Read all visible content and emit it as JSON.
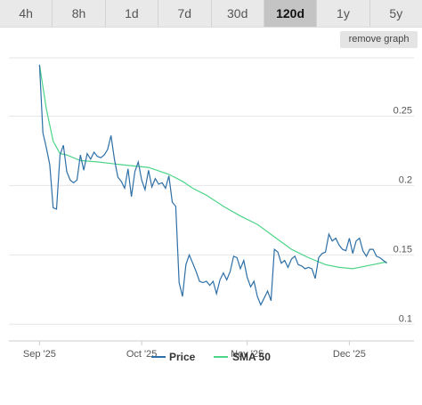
{
  "tabs": [
    {
      "label": "4h",
      "active": false
    },
    {
      "label": "8h",
      "active": false
    },
    {
      "label": "1d",
      "active": false
    },
    {
      "label": "7d",
      "active": false
    },
    {
      "label": "30d",
      "active": false
    },
    {
      "label": "120d",
      "active": true
    },
    {
      "label": "1y",
      "active": false
    },
    {
      "label": "5y",
      "active": false
    }
  ],
  "remove_graph_label": "remove graph",
  "colors": {
    "price": "#2d6fa6",
    "sma": "#4cd488",
    "grid": "#e6e6e6",
    "axis": "#cccccc"
  },
  "chart_data": {
    "type": "line",
    "xlim": [
      "2025-08-23",
      "2025-12-20"
    ],
    "ylim": [
      0.088,
      0.292
    ],
    "x_ticks": [
      {
        "date": "2025-09-01",
        "label": "Sep '25"
      },
      {
        "date": "2025-10-01",
        "label": "Oct '25"
      },
      {
        "date": "2025-11-01",
        "label": "Nov '25"
      },
      {
        "date": "2025-12-01",
        "label": "Dec '25"
      }
    ],
    "y_ticks": [
      {
        "value": 0.25,
        "label": "0.25"
      },
      {
        "value": 0.2,
        "label": "0.2"
      },
      {
        "value": 0.15,
        "label": "0.15"
      },
      {
        "value": 0.1,
        "label": "0.1"
      }
    ],
    "series": [
      {
        "name": "Price",
        "points": [
          [
            "2025-09-01",
            0.287
          ],
          [
            "2025-09-02",
            0.238
          ],
          [
            "2025-09-03",
            0.227
          ],
          [
            "2025-09-04",
            0.215
          ],
          [
            "2025-09-05",
            0.184
          ],
          [
            "2025-09-06",
            0.183
          ],
          [
            "2025-09-07",
            0.222
          ],
          [
            "2025-09-08",
            0.229
          ],
          [
            "2025-09-09",
            0.21
          ],
          [
            "2025-09-10",
            0.204
          ],
          [
            "2025-09-11",
            0.202
          ],
          [
            "2025-09-12",
            0.204
          ],
          [
            "2025-09-13",
            0.222
          ],
          [
            "2025-09-14",
            0.211
          ],
          [
            "2025-09-15",
            0.223
          ],
          [
            "2025-09-16",
            0.219
          ],
          [
            "2025-09-17",
            0.224
          ],
          [
            "2025-09-18",
            0.221
          ],
          [
            "2025-09-19",
            0.22
          ],
          [
            "2025-09-20",
            0.222
          ],
          [
            "2025-09-21",
            0.226
          ],
          [
            "2025-09-22",
            0.236
          ],
          [
            "2025-09-23",
            0.219
          ],
          [
            "2025-09-24",
            0.206
          ],
          [
            "2025-09-25",
            0.203
          ],
          [
            "2025-09-26",
            0.198
          ],
          [
            "2025-09-27",
            0.212
          ],
          [
            "2025-09-28",
            0.192
          ],
          [
            "2025-09-29",
            0.21
          ],
          [
            "2025-09-30",
            0.217
          ],
          [
            "2025-10-01",
            0.204
          ],
          [
            "2025-10-02",
            0.197
          ],
          [
            "2025-10-03",
            0.211
          ],
          [
            "2025-10-04",
            0.199
          ],
          [
            "2025-10-05",
            0.205
          ],
          [
            "2025-10-06",
            0.201
          ],
          [
            "2025-10-07",
            0.202
          ],
          [
            "2025-10-08",
            0.198
          ],
          [
            "2025-10-09",
            0.207
          ],
          [
            "2025-10-10",
            0.188
          ],
          [
            "2025-10-11",
            0.185
          ],
          [
            "2025-10-12",
            0.13
          ],
          [
            "2025-10-13",
            0.12
          ],
          [
            "2025-10-14",
            0.143
          ],
          [
            "2025-10-15",
            0.15
          ],
          [
            "2025-10-16",
            0.144
          ],
          [
            "2025-10-17",
            0.138
          ],
          [
            "2025-10-18",
            0.131
          ],
          [
            "2025-10-19",
            0.13
          ],
          [
            "2025-10-20",
            0.131
          ],
          [
            "2025-10-21",
            0.128
          ],
          [
            "2025-10-22",
            0.131
          ],
          [
            "2025-10-23",
            0.122
          ],
          [
            "2025-10-24",
            0.132
          ],
          [
            "2025-10-25",
            0.137
          ],
          [
            "2025-10-26",
            0.132
          ],
          [
            "2025-10-27",
            0.138
          ],
          [
            "2025-10-28",
            0.149
          ],
          [
            "2025-10-29",
            0.148
          ],
          [
            "2025-10-30",
            0.14
          ],
          [
            "2025-10-31",
            0.146
          ],
          [
            "2025-11-01",
            0.134
          ],
          [
            "2025-11-02",
            0.127
          ],
          [
            "2025-11-03",
            0.131
          ],
          [
            "2025-11-04",
            0.12
          ],
          [
            "2025-11-05",
            0.114
          ],
          [
            "2025-11-06",
            0.119
          ],
          [
            "2025-11-07",
            0.124
          ],
          [
            "2025-11-08",
            0.117
          ],
          [
            "2025-11-09",
            0.154
          ],
          [
            "2025-11-10",
            0.152
          ],
          [
            "2025-11-11",
            0.144
          ],
          [
            "2025-11-12",
            0.146
          ],
          [
            "2025-11-13",
            0.141
          ],
          [
            "2025-11-14",
            0.147
          ],
          [
            "2025-11-15",
            0.149
          ],
          [
            "2025-11-16",
            0.143
          ],
          [
            "2025-11-17",
            0.142
          ],
          [
            "2025-11-18",
            0.14
          ],
          [
            "2025-11-19",
            0.141
          ],
          [
            "2025-11-20",
            0.14
          ],
          [
            "2025-11-21",
            0.133
          ],
          [
            "2025-11-22",
            0.148
          ],
          [
            "2025-11-23",
            0.151
          ],
          [
            "2025-11-24",
            0.152
          ],
          [
            "2025-11-25",
            0.165
          ],
          [
            "2025-11-26",
            0.16
          ],
          [
            "2025-11-27",
            0.162
          ],
          [
            "2025-11-28",
            0.157
          ],
          [
            "2025-11-29",
            0.154
          ],
          [
            "2025-11-30",
            0.153
          ],
          [
            "2025-12-01",
            0.162
          ],
          [
            "2025-12-02",
            0.151
          ],
          [
            "2025-12-03",
            0.16
          ],
          [
            "2025-12-04",
            0.162
          ],
          [
            "2025-12-05",
            0.153
          ],
          [
            "2025-12-06",
            0.149
          ],
          [
            "2025-12-07",
            0.154
          ],
          [
            "2025-12-08",
            0.154
          ],
          [
            "2025-12-09",
            0.149
          ],
          [
            "2025-12-10",
            0.148
          ],
          [
            "2025-12-11",
            0.146
          ],
          [
            "2025-12-12",
            0.144
          ]
        ]
      },
      {
        "name": "SMA 50",
        "points": [
          [
            "2025-09-01",
            0.287
          ],
          [
            "2025-09-03",
            0.255
          ],
          [
            "2025-09-05",
            0.232
          ],
          [
            "2025-09-07",
            0.223
          ],
          [
            "2025-09-09",
            0.222
          ],
          [
            "2025-09-13",
            0.218
          ],
          [
            "2025-09-18",
            0.217
          ],
          [
            "2025-09-25",
            0.215
          ],
          [
            "2025-10-03",
            0.213
          ],
          [
            "2025-10-09",
            0.208
          ],
          [
            "2025-10-13",
            0.203
          ],
          [
            "2025-10-16",
            0.198
          ],
          [
            "2025-10-20",
            0.193
          ],
          [
            "2025-10-25",
            0.185
          ],
          [
            "2025-10-30",
            0.178
          ],
          [
            "2025-11-04",
            0.172
          ],
          [
            "2025-11-09",
            0.163
          ],
          [
            "2025-11-14",
            0.154
          ],
          [
            "2025-11-19",
            0.148
          ],
          [
            "2025-11-24",
            0.143
          ],
          [
            "2025-11-28",
            0.141
          ],
          [
            "2025-12-02",
            0.14
          ],
          [
            "2025-12-06",
            0.142
          ],
          [
            "2025-12-12",
            0.145
          ]
        ]
      }
    ]
  }
}
